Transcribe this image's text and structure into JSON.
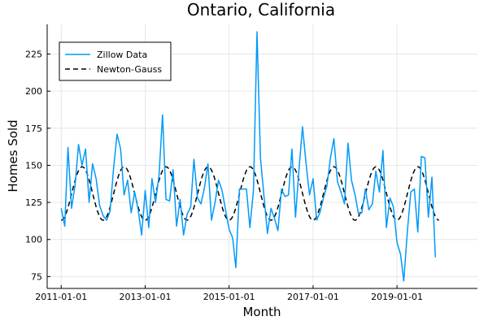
{
  "chart_data": {
    "type": "line",
    "title": "Ontario, California",
    "xlabel": "Month",
    "ylabel": "Homes Sold",
    "x_range": [
      "2010-09-01",
      "2020-12-01"
    ],
    "ylim": [
      67,
      245
    ],
    "x_ticks": [
      "2011-01-01",
      "2013-01-01",
      "2015-01-01",
      "2017-01-01",
      "2019-01-01"
    ],
    "y_ticks": [
      75,
      100,
      125,
      150,
      175,
      200,
      225
    ],
    "grid": true,
    "legend_position": "top-left",
    "series": [
      {
        "name": "Zillow Data",
        "style": "solid",
        "color": "#009af9",
        "x": [
          "2011-01-01",
          "2011-02-01",
          "2011-03-01",
          "2011-04-01",
          "2011-05-01",
          "2011-06-01",
          "2011-07-01",
          "2011-08-01",
          "2011-09-01",
          "2011-10-01",
          "2011-11-01",
          "2011-12-01",
          "2012-01-01",
          "2012-02-01",
          "2012-03-01",
          "2012-04-01",
          "2012-05-01",
          "2012-06-01",
          "2012-07-01",
          "2012-08-01",
          "2012-09-01",
          "2012-10-01",
          "2012-11-01",
          "2012-12-01",
          "2013-01-01",
          "2013-02-01",
          "2013-03-01",
          "2013-04-01",
          "2013-05-01",
          "2013-06-01",
          "2013-07-01",
          "2013-08-01",
          "2013-09-01",
          "2013-10-01",
          "2013-11-01",
          "2013-12-01",
          "2014-01-01",
          "2014-02-01",
          "2014-03-01",
          "2014-04-01",
          "2014-05-01",
          "2014-06-01",
          "2014-07-01",
          "2014-08-01",
          "2014-09-01",
          "2014-10-01",
          "2014-11-01",
          "2014-12-01",
          "2015-01-01",
          "2015-02-01",
          "2015-03-01",
          "2015-04-01",
          "2015-05-01",
          "2015-06-01",
          "2015-07-01",
          "2015-08-01",
          "2015-09-01",
          "2015-10-01",
          "2015-11-01",
          "2015-12-01",
          "2016-01-01",
          "2016-02-01",
          "2016-03-01",
          "2016-04-01",
          "2016-05-01",
          "2016-06-01",
          "2016-07-01",
          "2016-08-01",
          "2016-09-01",
          "2016-10-01",
          "2016-11-01",
          "2016-12-01",
          "2017-01-01",
          "2017-02-01",
          "2017-03-01",
          "2017-04-01",
          "2017-05-01",
          "2017-06-01",
          "2017-07-01",
          "2017-08-01",
          "2017-09-01",
          "2017-10-01",
          "2017-11-01",
          "2017-12-01",
          "2018-01-01",
          "2018-02-01",
          "2018-03-01",
          "2018-04-01",
          "2018-05-01",
          "2018-06-01",
          "2018-07-01",
          "2018-08-01",
          "2018-09-01",
          "2018-10-01",
          "2018-11-01",
          "2018-12-01",
          "2019-01-01",
          "2019-02-01",
          "2019-03-01",
          "2019-04-01",
          "2019-05-01",
          "2019-06-01",
          "2019-07-01",
          "2019-08-01",
          "2019-09-01",
          "2019-10-01",
          "2019-11-01",
          "2019-12-01"
        ],
        "y": [
          121,
          109,
          162,
          121,
          136,
          164,
          150,
          161,
          125,
          151,
          141,
          123,
          116,
          113,
          119,
          148,
          171,
          161,
          130,
          140,
          118,
          132,
          120,
          103,
          133,
          108,
          141,
          125,
          143,
          184,
          127,
          126,
          147,
          109,
          127,
          103,
          117,
          122,
          154,
          128,
          124,
          135,
          151,
          113,
          125,
          140,
          133,
          120,
          107,
          101,
          81,
          134,
          134,
          134,
          108,
          133,
          240,
          155,
          129,
          104,
          121,
          114,
          106,
          134,
          129,
          130,
          161,
          115,
          148,
          176,
          151,
          130,
          141,
          113,
          118,
          128,
          136,
          155,
          168,
          139,
          132,
          124,
          165,
          140,
          130,
          117,
          118,
          134,
          120,
          124,
          146,
          132,
          160,
          108,
          128,
          122,
          98,
          90,
          72,
          105,
          132,
          134,
          105,
          156,
          155,
          115,
          142,
          88
        ]
      },
      {
        "name": "Newton-Gauss",
        "style": "dashed",
        "color": "#000000",
        "x_start": "2011-01-01",
        "period_months": 12,
        "fit_min": 113,
        "fit_max": 149,
        "fit_months": 108
      }
    ]
  }
}
